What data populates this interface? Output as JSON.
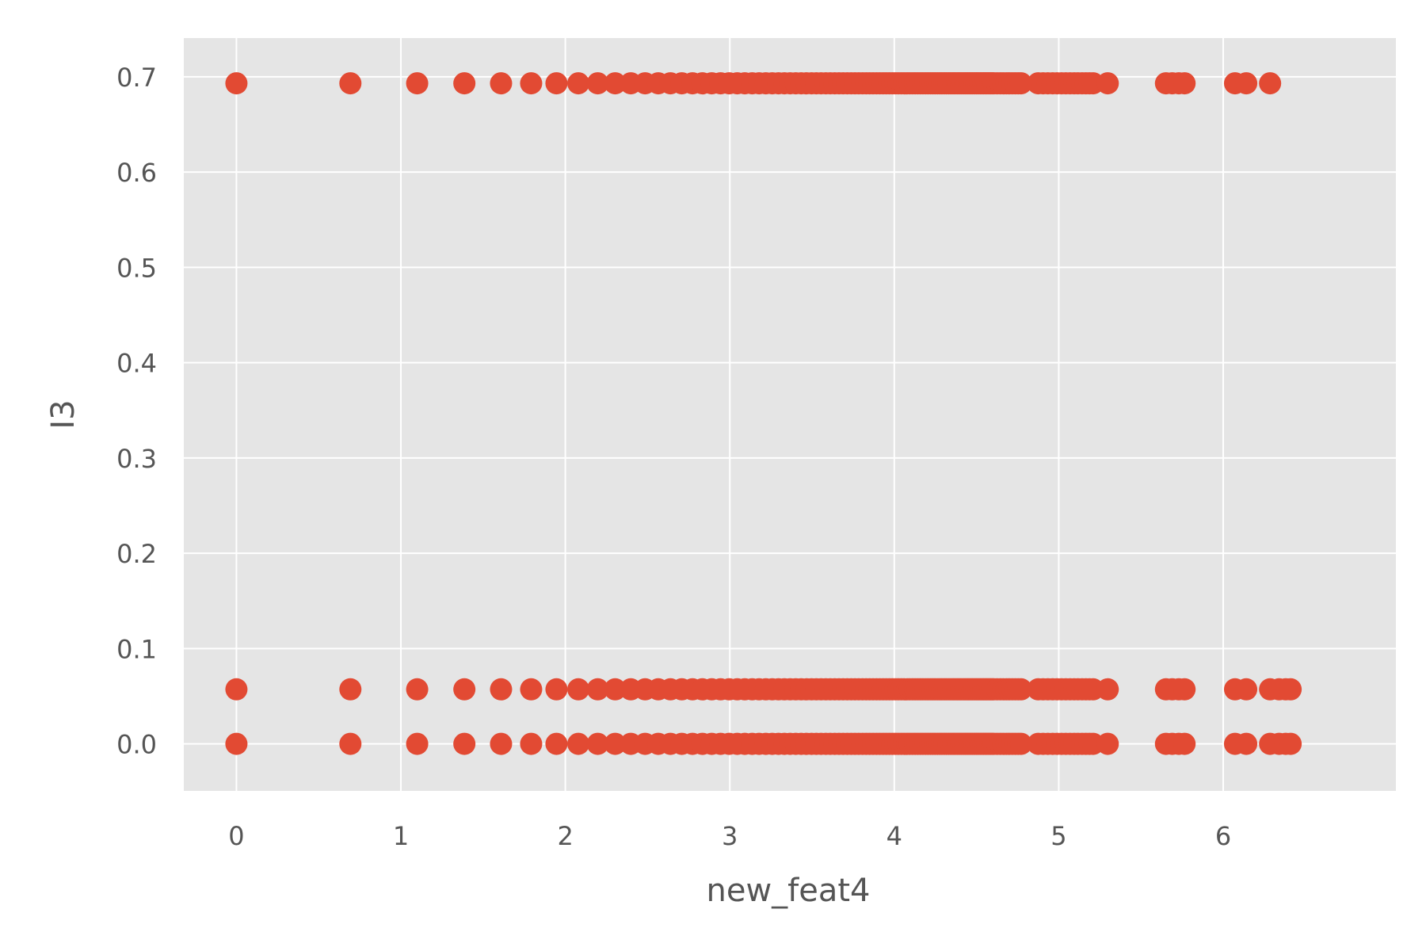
{
  "chart_data": {
    "type": "scatter",
    "xlabel": "new_feat4",
    "ylabel": "I3",
    "xlim": [
      -0.32,
      7.05
    ],
    "ylim": [
      -0.0494,
      0.7406
    ],
    "xticks": [
      0,
      1,
      2,
      3,
      4,
      5,
      6
    ],
    "yticks": [
      0.0,
      0.1,
      0.2,
      0.3,
      0.4,
      0.5,
      0.6,
      0.7
    ],
    "xtick_labels": [
      "0",
      "1",
      "2",
      "3",
      "4",
      "5",
      "6"
    ],
    "ytick_labels": [
      "0.0",
      "0.1",
      "0.2",
      "0.3",
      "0.4",
      "0.5",
      "0.6",
      "0.7"
    ],
    "grid": true,
    "colors": {
      "background": "#e5e5e5",
      "grid": "#ffffff",
      "marker": "#e24a33"
    },
    "series": [
      {
        "y": 0.6931,
        "x": [
          0,
          0.693,
          1.099,
          1.386,
          1.609,
          1.792,
          1.946,
          2.079,
          2.197,
          2.303,
          2.398,
          2.485,
          2.565,
          2.639,
          2.708,
          2.773,
          2.833,
          2.89,
          2.944,
          2.996,
          3.045,
          3.091,
          3.136,
          3.178,
          3.219,
          3.258,
          3.296,
          3.332,
          3.367,
          3.401,
          3.434,
          3.466,
          3.497,
          3.526,
          3.555,
          3.584,
          3.611,
          3.638,
          3.664,
          3.689,
          3.714,
          3.738,
          3.761,
          3.784,
          3.807,
          3.829,
          3.85,
          3.871,
          3.892,
          3.912,
          3.932,
          3.951,
          3.97,
          3.989,
          4.007,
          4.025,
          4.043,
          4.06,
          4.078,
          4.094,
          4.111,
          4.127,
          4.143,
          4.159,
          4.174,
          4.19,
          4.205,
          4.22,
          4.234,
          4.248,
          4.263,
          4.277,
          4.29,
          4.304,
          4.317,
          4.331,
          4.344,
          4.357,
          4.369,
          4.382,
          4.394,
          4.406,
          4.419,
          4.431,
          4.443,
          4.454,
          4.466,
          4.477,
          4.489,
          4.5,
          4.511,
          4.522,
          4.533,
          4.543,
          4.554,
          4.564,
          4.575,
          4.585,
          4.595,
          4.605,
          4.625,
          4.645,
          4.663,
          4.682,
          4.7,
          4.718,
          4.736,
          4.754,
          4.771,
          4.875,
          4.905,
          4.934,
          4.963,
          4.99,
          5.017,
          5.043,
          5.069,
          5.094,
          5.117,
          5.142,
          5.165,
          5.187,
          5.209,
          5.298,
          5.652,
          5.69,
          5.73,
          5.765,
          6.072,
          6.14,
          6.285
        ]
      },
      {
        "y": 0.0572,
        "x": [
          0,
          0.693,
          1.099,
          1.386,
          1.609,
          1.792,
          1.946,
          2.079,
          2.197,
          2.303,
          2.398,
          2.485,
          2.565,
          2.639,
          2.708,
          2.773,
          2.833,
          2.89,
          2.944,
          2.996,
          3.045,
          3.091,
          3.136,
          3.178,
          3.219,
          3.258,
          3.296,
          3.332,
          3.367,
          3.401,
          3.434,
          3.466,
          3.497,
          3.526,
          3.555,
          3.584,
          3.611,
          3.638,
          3.664,
          3.689,
          3.714,
          3.738,
          3.761,
          3.784,
          3.807,
          3.829,
          3.85,
          3.871,
          3.892,
          3.912,
          3.932,
          3.951,
          3.97,
          3.989,
          4.007,
          4.025,
          4.043,
          4.06,
          4.078,
          4.094,
          4.111,
          4.127,
          4.143,
          4.159,
          4.174,
          4.19,
          4.205,
          4.22,
          4.234,
          4.248,
          4.263,
          4.277,
          4.29,
          4.304,
          4.317,
          4.331,
          4.344,
          4.357,
          4.369,
          4.382,
          4.394,
          4.406,
          4.419,
          4.431,
          4.443,
          4.454,
          4.466,
          4.477,
          4.489,
          4.5,
          4.511,
          4.522,
          4.533,
          4.543,
          4.554,
          4.564,
          4.575,
          4.585,
          4.595,
          4.605,
          4.625,
          4.645,
          4.663,
          4.682,
          4.7,
          4.718,
          4.736,
          4.754,
          4.771,
          4.875,
          4.905,
          4.934,
          4.963,
          4.99,
          5.017,
          5.043,
          5.069,
          5.094,
          5.117,
          5.142,
          5.165,
          5.187,
          5.209,
          5.298,
          5.652,
          5.69,
          5.73,
          5.765,
          6.072,
          6.14,
          6.285,
          6.34,
          6.38,
          6.41
        ]
      },
      {
        "y": 0.0,
        "x": [
          0,
          0.693,
          1.099,
          1.386,
          1.609,
          1.792,
          1.946,
          2.079,
          2.197,
          2.303,
          2.398,
          2.485,
          2.565,
          2.639,
          2.708,
          2.773,
          2.833,
          2.89,
          2.944,
          2.996,
          3.045,
          3.091,
          3.136,
          3.178,
          3.219,
          3.258,
          3.296,
          3.332,
          3.367,
          3.401,
          3.434,
          3.466,
          3.497,
          3.526,
          3.555,
          3.584,
          3.611,
          3.638,
          3.664,
          3.689,
          3.714,
          3.738,
          3.761,
          3.784,
          3.807,
          3.829,
          3.85,
          3.871,
          3.892,
          3.912,
          3.932,
          3.951,
          3.97,
          3.989,
          4.007,
          4.025,
          4.043,
          4.06,
          4.078,
          4.094,
          4.111,
          4.127,
          4.143,
          4.159,
          4.174,
          4.19,
          4.205,
          4.22,
          4.234,
          4.248,
          4.263,
          4.277,
          4.29,
          4.304,
          4.317,
          4.331,
          4.344,
          4.357,
          4.369,
          4.382,
          4.394,
          4.406,
          4.419,
          4.431,
          4.443,
          4.454,
          4.466,
          4.477,
          4.489,
          4.5,
          4.511,
          4.522,
          4.533,
          4.543,
          4.554,
          4.564,
          4.575,
          4.585,
          4.595,
          4.605,
          4.625,
          4.645,
          4.663,
          4.682,
          4.7,
          4.718,
          4.736,
          4.754,
          4.771,
          4.875,
          4.905,
          4.934,
          4.963,
          4.99,
          5.017,
          5.043,
          5.069,
          5.094,
          5.117,
          5.142,
          5.165,
          5.187,
          5.209,
          5.298,
          5.652,
          5.69,
          5.73,
          5.765,
          6.072,
          6.14,
          6.285,
          6.34,
          6.38,
          6.41
        ]
      }
    ]
  }
}
